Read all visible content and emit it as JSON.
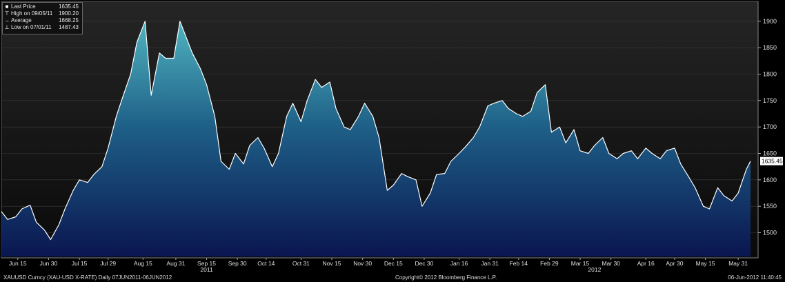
{
  "legend": {
    "last_price_label": "Last Price",
    "last_price_value": "1635.45",
    "high_label": "High on 09/05/11",
    "high_value": "1900.20",
    "average_label": "Average",
    "average_value": "1668.25",
    "low_label": "Low on 07/01/11",
    "low_value": "1487.43"
  },
  "footer": {
    "left": "XAUUSD Curncy (XAU-USD X-RATE) Daily 07JUN2011-06JUN2012",
    "center": "Copyright© 2012 Bloomberg Finance L.P.",
    "right": "06-Jun-2012 11:40:45"
  },
  "chart_data": {
    "type": "area",
    "x_tick_labels": [
      "Jun 15",
      "Jun 30",
      "Jul 15",
      "Jul 29",
      "Aug 15",
      "Aug 31",
      "Sep 15",
      "Sep 30",
      "Oct 14",
      "Oct 31",
      "Nov 15",
      "Nov 30",
      "Dec 15",
      "Dec 30",
      "Jan 16",
      "Jan 31",
      "Feb 14",
      "Feb 29",
      "Mar 15",
      "Mar 30",
      "Apr 16",
      "Apr 30",
      "May 15",
      "May 31"
    ],
    "year_labels": [
      "2011",
      "2012"
    ],
    "y_ticks": [
      1500,
      1550,
      1600,
      1650,
      1700,
      1750,
      1800,
      1850,
      1900
    ],
    "ylim": [
      1455,
      1935
    ],
    "last_price_tag": "1635.45",
    "x": [
      "2011-06-07",
      "2011-06-10",
      "2011-06-14",
      "2011-06-17",
      "2011-06-21",
      "2011-06-24",
      "2011-06-28",
      "2011-07-01",
      "2011-07-05",
      "2011-07-08",
      "2011-07-12",
      "2011-07-15",
      "2011-07-19",
      "2011-07-22",
      "2011-07-26",
      "2011-07-29",
      "2011-08-02",
      "2011-08-05",
      "2011-08-09",
      "2011-08-12",
      "2011-08-16",
      "2011-08-19",
      "2011-08-23",
      "2011-08-26",
      "2011-08-30",
      "2011-09-02",
      "2011-09-05",
      "2011-09-08",
      "2011-09-12",
      "2011-09-15",
      "2011-09-19",
      "2011-09-22",
      "2011-09-26",
      "2011-09-29",
      "2011-10-03",
      "2011-10-06",
      "2011-10-10",
      "2011-10-13",
      "2011-10-17",
      "2011-10-20",
      "2011-10-24",
      "2011-10-27",
      "2011-10-31",
      "2011-11-03",
      "2011-11-07",
      "2011-11-10",
      "2011-11-14",
      "2011-11-17",
      "2011-11-21",
      "2011-11-24",
      "2011-11-28",
      "2011-12-01",
      "2011-12-05",
      "2011-12-08",
      "2011-12-12",
      "2011-12-15",
      "2011-12-19",
      "2011-12-22",
      "2011-12-26",
      "2011-12-29",
      "2012-01-02",
      "2012-01-05",
      "2012-01-09",
      "2012-01-12",
      "2012-01-16",
      "2012-01-19",
      "2012-01-23",
      "2012-01-26",
      "2012-01-30",
      "2012-02-02",
      "2012-02-06",
      "2012-02-09",
      "2012-02-13",
      "2012-02-16",
      "2012-02-20",
      "2012-02-23",
      "2012-02-27",
      "2012-03-01",
      "2012-03-05",
      "2012-03-08",
      "2012-03-12",
      "2012-03-15",
      "2012-03-19",
      "2012-03-22",
      "2012-03-26",
      "2012-03-29",
      "2012-04-02",
      "2012-04-05",
      "2012-04-09",
      "2012-04-12",
      "2012-04-16",
      "2012-04-19",
      "2012-04-23",
      "2012-04-26",
      "2012-04-30",
      "2012-05-03",
      "2012-05-07",
      "2012-05-10",
      "2012-05-14",
      "2012-05-17",
      "2012-05-21",
      "2012-05-24",
      "2012-05-28",
      "2012-05-31",
      "2012-06-04",
      "2012-06-06"
    ],
    "values": [
      1540,
      1525,
      1530,
      1545,
      1552,
      1520,
      1505,
      1487,
      1515,
      1545,
      1580,
      1600,
      1595,
      1610,
      1625,
      1660,
      1720,
      1755,
      1800,
      1860,
      1900,
      1760,
      1840,
      1830,
      1830,
      1900,
      1870,
      1840,
      1810,
      1780,
      1720,
      1635,
      1620,
      1650,
      1630,
      1665,
      1680,
      1660,
      1625,
      1650,
      1720,
      1745,
      1710,
      1750,
      1790,
      1775,
      1785,
      1735,
      1700,
      1695,
      1720,
      1745,
      1720,
      1680,
      1580,
      1590,
      1612,
      1606,
      1600,
      1550,
      1575,
      1610,
      1612,
      1635,
      1650,
      1662,
      1680,
      1700,
      1740,
      1745,
      1750,
      1735,
      1725,
      1720,
      1730,
      1765,
      1780,
      1690,
      1700,
      1670,
      1695,
      1655,
      1650,
      1665,
      1680,
      1650,
      1640,
      1650,
      1655,
      1640,
      1660,
      1650,
      1640,
      1655,
      1660,
      1630,
      1605,
      1585,
      1550,
      1545,
      1585,
      1570,
      1560,
      1575,
      1620,
      1635.45
    ]
  }
}
